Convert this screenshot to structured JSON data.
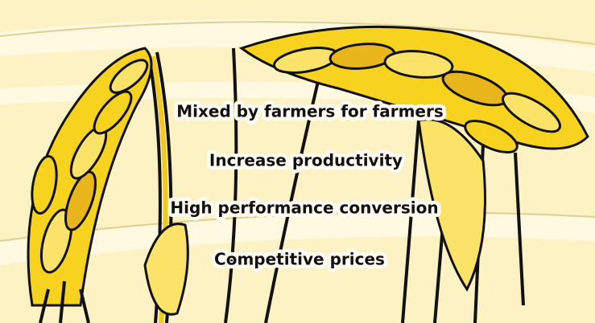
{
  "lines": [
    "Mixed by farmers for farmers",
    "Increase productivity",
    "High performance conversion",
    "Competitive prices"
  ]
}
